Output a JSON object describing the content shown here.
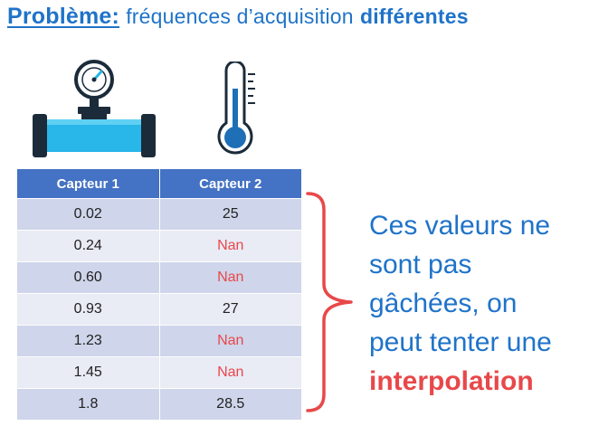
{
  "title": {
    "keyword": "Problème:",
    "text": "fréquences d’acquisition",
    "emphasis": "différentes"
  },
  "table": {
    "headers": [
      "Capteur 1",
      "Capteur 2"
    ],
    "rows": [
      [
        "0.02",
        "25"
      ],
      [
        "0.24",
        "Nan"
      ],
      [
        "0.60",
        "Nan"
      ],
      [
        "0.93",
        "27"
      ],
      [
        "1.23",
        "Nan"
      ],
      [
        "1.45",
        "Nan"
      ],
      [
        "1.8",
        "28.5"
      ]
    ]
  },
  "note": {
    "line1": "Ces valeurs ne",
    "line2": "sont pas",
    "line3": "gâchées, on",
    "line4": "peut tenter une",
    "highlight": "interpolation"
  },
  "icons": {
    "sensor1": "pressure-gauge-pipe-icon",
    "sensor2": "thermometer-icon"
  },
  "colors": {
    "accent": "#1f73c9",
    "header": "#4472c4",
    "nan": "#e8484a",
    "pipe": "#29b6e8"
  }
}
